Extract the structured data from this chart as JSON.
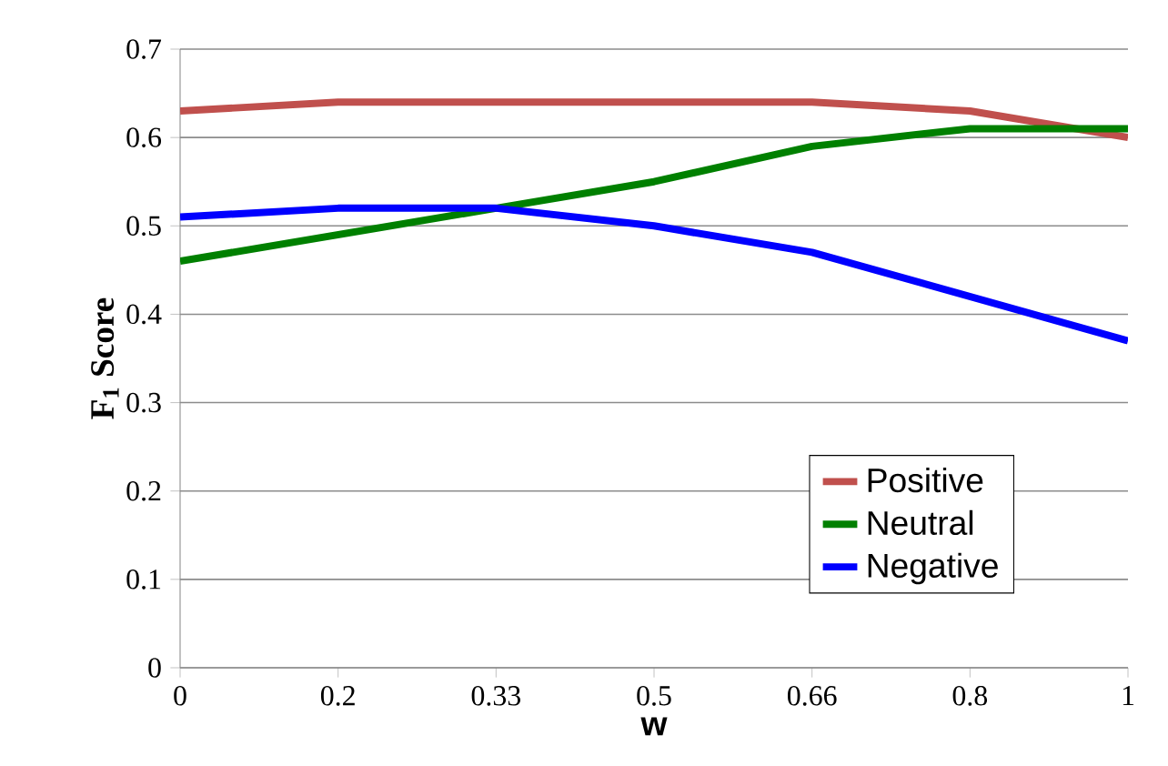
{
  "chart_data": {
    "type": "line",
    "xlabel": "w",
    "ylabel": "F$_{1}$ Score",
    "categories": [
      "0",
      "0.2",
      "0.33",
      "0.5",
      "0.66",
      "0.8",
      "1"
    ],
    "series": [
      {
        "name": "Positive",
        "color": "#c0504d",
        "values": [
          0.63,
          0.64,
          0.64,
          0.64,
          0.64,
          0.63,
          0.6
        ]
      },
      {
        "name": "Neutral",
        "color": "#008000",
        "values": [
          0.46,
          0.49,
          0.52,
          0.55,
          0.59,
          0.61,
          0.61
        ]
      },
      {
        "name": "Negative",
        "color": "#0000ff",
        "values": [
          0.51,
          0.52,
          0.52,
          0.5,
          0.47,
          0.42,
          0.37
        ]
      }
    ],
    "ylim": [
      0,
      0.7
    ],
    "yticks": [
      0,
      0.1,
      0.2,
      0.3,
      0.4,
      0.5,
      0.6,
      0.7
    ],
    "grid": "y",
    "legend": "bottom right",
    "marker": "none",
    "line_style": "solid"
  }
}
